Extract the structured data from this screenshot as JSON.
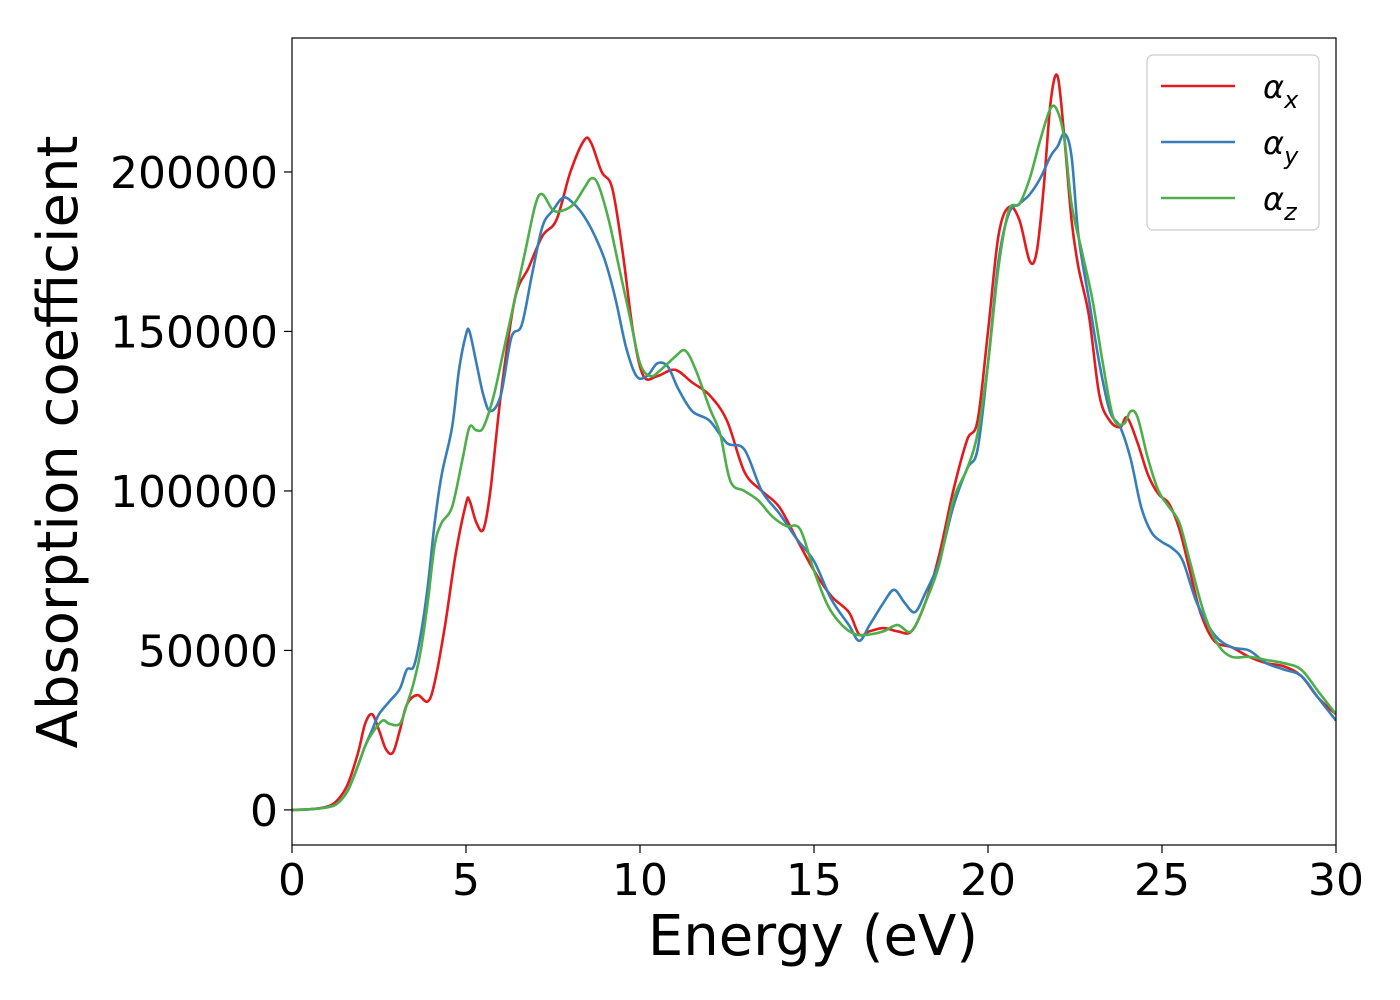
{
  "chart_data": {
    "type": "line",
    "xlabel": "Energy (eV)",
    "ylabel": "Absorption coefficient",
    "xlim": [
      0,
      30
    ],
    "ylim": [
      -11000,
      242000
    ],
    "xticks": [
      0,
      5,
      10,
      15,
      20,
      25,
      30
    ],
    "xtick_labels": [
      "0",
      "5",
      "10",
      "15",
      "20",
      "25",
      "30"
    ],
    "yticks": [
      0,
      50000,
      100000,
      150000,
      200000
    ],
    "ytick_labels": [
      "0",
      "50000",
      "100000",
      "150000",
      "200000"
    ],
    "grid": false,
    "legend_position": "top-right",
    "series": [
      {
        "name": "αx",
        "symbol": "α",
        "subscript": "x",
        "color": "#e41a1c",
        "x": [
          0,
          0.5,
          1.0,
          1.3,
          1.6,
          1.9,
          2.1,
          2.3,
          2.5,
          2.7,
          2.9,
          3.1,
          3.3,
          3.6,
          3.9,
          4.1,
          4.4,
          4.7,
          5.0,
          5.1,
          5.3,
          5.5,
          5.7,
          6.0,
          6.4,
          6.8,
          7.2,
          7.6,
          8.0,
          8.4,
          8.6,
          8.9,
          9.2,
          9.5,
          9.8,
          10.1,
          10.5,
          11.0,
          11.5,
          12.0,
          12.5,
          13.0,
          13.5,
          14.0,
          14.5,
          15.0,
          15.5,
          16.0,
          16.3,
          16.6,
          17.0,
          17.4,
          17.8,
          18.2,
          18.6,
          19.0,
          19.4,
          19.7,
          20.0,
          20.3,
          20.6,
          20.9,
          21.2,
          21.4,
          21.6,
          21.8,
          22.0,
          22.2,
          22.4,
          22.6,
          22.9,
          23.2,
          23.5,
          23.8,
          24.0,
          24.3,
          24.6,
          24.9,
          25.2,
          25.5,
          25.8,
          26.1,
          26.5,
          27.0,
          27.5,
          28.0,
          28.5,
          29.0,
          29.5,
          30.0
        ],
        "y": [
          0,
          200,
          1000,
          3000,
          8000,
          18000,
          27000,
          30000,
          25000,
          19000,
          18000,
          25000,
          33000,
          36000,
          34000,
          40000,
          58000,
          80000,
          96000,
          97000,
          90000,
          88000,
          100000,
          130000,
          160000,
          170000,
          180000,
          185000,
          200000,
          210000,
          209000,
          200000,
          195000,
          175000,
          150000,
          136000,
          136000,
          138000,
          134000,
          130000,
          122000,
          106000,
          100000,
          95000,
          85000,
          75000,
          67000,
          62000,
          55000,
          56000,
          57000,
          56000,
          56000,
          65000,
          80000,
          100000,
          116000,
          122000,
          150000,
          180000,
          189000,
          185000,
          172000,
          175000,
          195000,
          222000,
          230000,
          210000,
          185000,
          170000,
          155000,
          130000,
          122000,
          120000,
          123000,
          115000,
          105000,
          99000,
          96000,
          88000,
          75000,
          62000,
          53000,
          51000,
          48000,
          46000,
          45000,
          42000,
          35000,
          30000
        ]
      },
      {
        "name": "αy",
        "symbol": "α",
        "subscript": "y",
        "color": "#377eb8",
        "x": [
          0,
          0.5,
          1.0,
          1.3,
          1.6,
          1.9,
          2.1,
          2.3,
          2.5,
          2.8,
          3.1,
          3.3,
          3.5,
          3.7,
          3.9,
          4.1,
          4.3,
          4.6,
          4.8,
          5.0,
          5.1,
          5.3,
          5.5,
          5.7,
          6.0,
          6.3,
          6.6,
          6.9,
          7.2,
          7.5,
          7.8,
          8.1,
          8.4,
          8.7,
          9.0,
          9.3,
          9.6,
          9.9,
          10.2,
          10.5,
          10.8,
          11.1,
          11.5,
          12.0,
          12.5,
          13.0,
          13.5,
          14.0,
          14.5,
          15.0,
          15.5,
          16.0,
          16.3,
          16.6,
          17.0,
          17.3,
          17.6,
          17.9,
          18.2,
          18.6,
          19.0,
          19.4,
          19.7,
          20.0,
          20.3,
          20.6,
          20.9,
          21.2,
          21.5,
          21.8,
          22.0,
          22.2,
          22.4,
          22.6,
          22.9,
          23.2,
          23.5,
          23.8,
          24.1,
          24.4,
          24.7,
          25.0,
          25.3,
          25.6,
          26.0,
          26.5,
          27.0,
          27.5,
          28.0,
          28.5,
          29.0,
          29.5,
          30.0
        ],
        "y": [
          0,
          200,
          800,
          2000,
          6000,
          14000,
          20000,
          25000,
          30000,
          34000,
          38000,
          44000,
          45000,
          55000,
          70000,
          90000,
          105000,
          120000,
          138000,
          149000,
          150000,
          140000,
          130000,
          125000,
          130000,
          148000,
          152000,
          168000,
          183000,
          188000,
          192000,
          190000,
          186000,
          180000,
          172000,
          160000,
          145000,
          136000,
          136000,
          140000,
          139000,
          132000,
          125000,
          122000,
          115000,
          113000,
          100000,
          93000,
          85000,
          78000,
          66000,
          58000,
          53000,
          58000,
          65000,
          69000,
          65000,
          62000,
          68000,
          78000,
          95000,
          107000,
          113000,
          140000,
          172000,
          187000,
          190000,
          193000,
          198000,
          205000,
          208000,
          212000,
          205000,
          180000,
          160000,
          140000,
          125000,
          120000,
          110000,
          95000,
          87000,
          84000,
          82000,
          78000,
          65000,
          55000,
          51000,
          50000,
          46000,
          44000,
          42000,
          35000,
          28000
        ]
      },
      {
        "name": "αz",
        "symbol": "α",
        "subscript": "z",
        "color": "#4daf4a",
        "x": [
          0,
          0.5,
          1.0,
          1.3,
          1.6,
          1.9,
          2.1,
          2.3,
          2.6,
          2.8,
          3.1,
          3.3,
          3.5,
          3.7,
          3.9,
          4.1,
          4.3,
          4.6,
          4.9,
          5.1,
          5.3,
          5.5,
          5.8,
          6.1,
          6.4,
          6.7,
          7.0,
          7.2,
          7.5,
          7.8,
          8.1,
          8.4,
          8.6,
          8.8,
          9.1,
          9.4,
          9.7,
          10.0,
          10.3,
          10.6,
          11.0,
          11.3,
          11.6,
          12.0,
          12.3,
          12.6,
          13.0,
          13.4,
          13.8,
          14.2,
          14.6,
          15.0,
          15.4,
          15.8,
          16.2,
          16.6,
          17.0,
          17.4,
          17.8,
          18.2,
          18.6,
          19.0,
          19.4,
          19.7,
          20.0,
          20.3,
          20.6,
          20.9,
          21.2,
          21.5,
          21.8,
          22.0,
          22.2,
          22.4,
          22.7,
          23.0,
          23.3,
          23.6,
          23.9,
          24.1,
          24.3,
          24.6,
          24.9,
          25.2,
          25.5,
          25.8,
          26.2,
          26.6,
          27.0,
          27.5,
          28.0,
          28.5,
          29.0,
          29.5,
          30.0
        ],
        "y": [
          0,
          200,
          800,
          2000,
          6000,
          14000,
          20000,
          24000,
          28000,
          27000,
          27000,
          33000,
          40000,
          50000,
          65000,
          83000,
          90000,
          95000,
          110000,
          120000,
          119000,
          120000,
          130000,
          145000,
          160000,
          175000,
          190000,
          193000,
          188000,
          188000,
          190000,
          195000,
          198000,
          196000,
          185000,
          170000,
          155000,
          140000,
          136000,
          138000,
          142000,
          144000,
          138000,
          126000,
          118000,
          103000,
          100000,
          97000,
          92000,
          89000,
          88000,
          75000,
          64000,
          58000,
          55000,
          55000,
          56000,
          58000,
          56000,
          65000,
          77000,
          97000,
          107000,
          118000,
          140000,
          170000,
          188000,
          190000,
          198000,
          210000,
          220000,
          219000,
          210000,
          190000,
          175000,
          160000,
          140000,
          123000,
          121000,
          125000,
          123000,
          110000,
          100000,
          95000,
          90000,
          78000,
          62000,
          52000,
          48000,
          48000,
          47000,
          46000,
          44000,
          37000,
          30000
        ]
      }
    ]
  }
}
